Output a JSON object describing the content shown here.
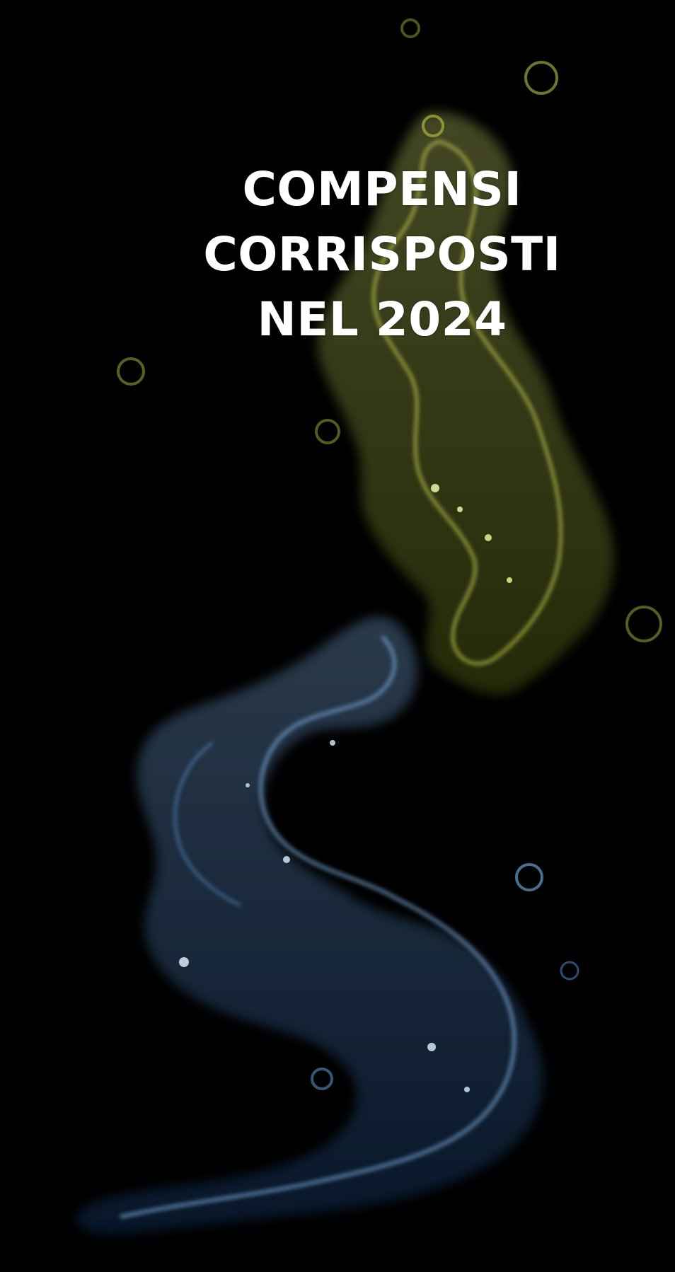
{
  "title": {
    "lines": [
      "COMPENSI",
      "CORRISPOSTI",
      "NEL 2024"
    ]
  },
  "colors": {
    "background": "#000000",
    "title_text": "#ffffff",
    "splash_upper": "#c9d84a",
    "splash_lower": "#4a8ed8"
  }
}
